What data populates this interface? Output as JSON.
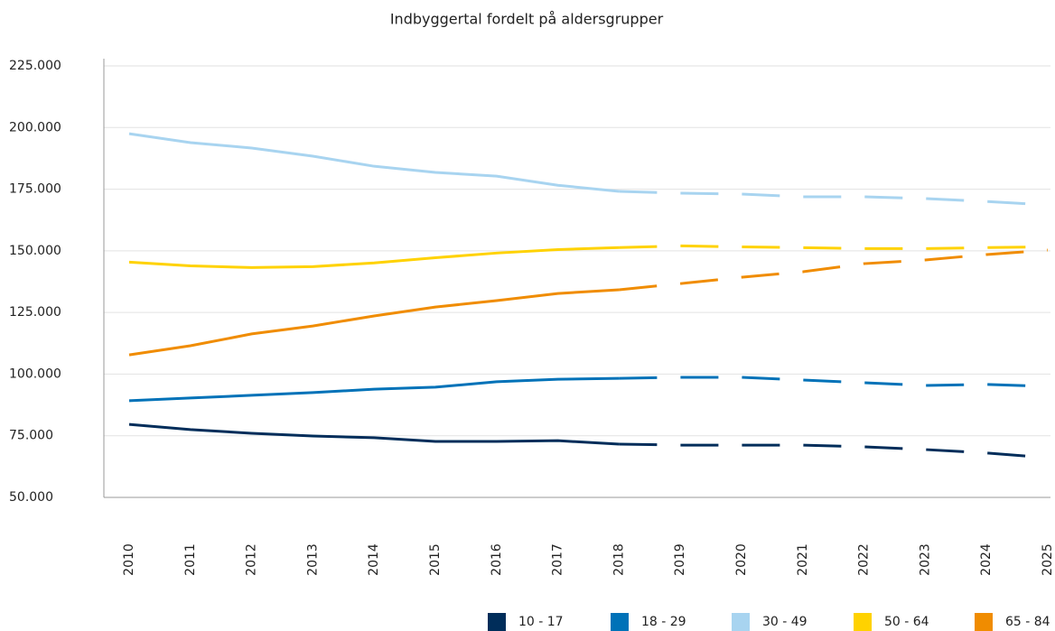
{
  "chart_data": {
    "type": "line",
    "title": "Indbyggertal fordelt på aldersgrupper",
    "categories": [
      "2010",
      "2011",
      "2012",
      "2013",
      "2014",
      "2015",
      "2016",
      "2017",
      "2018",
      "2019",
      "2020",
      "2021",
      "2022",
      "2023",
      "2024",
      "2025"
    ],
    "dashed_from": "2018",
    "series": [
      {
        "name": "10 - 17",
        "color": "#002d5a",
        "values": [
          79600,
          77500,
          76000,
          74900,
          74200,
          72700,
          72700,
          73000,
          71600,
          71200,
          71200,
          71200,
          70500,
          69400,
          68000,
          66100
        ]
      },
      {
        "name": "18 - 29",
        "color": "#0072b8",
        "values": [
          89200,
          90300,
          91400,
          92500,
          93900,
          94700,
          96900,
          97900,
          98300,
          98700,
          98700,
          97600,
          96500,
          95400,
          95800,
          95000
        ]
      },
      {
        "name": "30 - 49",
        "color": "#a8d4f0",
        "values": [
          197500,
          193900,
          191700,
          188400,
          184300,
          181800,
          180300,
          176600,
          174100,
          173400,
          173000,
          171900,
          171900,
          171200,
          170000,
          168600
        ]
      },
      {
        "name": "50 - 64",
        "color": "#ffd200",
        "values": [
          145400,
          143900,
          143200,
          143600,
          145100,
          147200,
          149100,
          150500,
          151300,
          152000,
          151600,
          151300,
          150900,
          150900,
          151300,
          151600
        ]
      },
      {
        "name": "65 - 84",
        "color": "#f08c00",
        "values": [
          107800,
          111500,
          116300,
          119500,
          123600,
          127200,
          129800,
          132700,
          134200,
          136700,
          139300,
          141500,
          144800,
          146300,
          148500,
          150300
        ]
      }
    ],
    "ylim": [
      50000,
      225000
    ],
    "yticks": [
      {
        "value": 50000,
        "label": "50.000"
      },
      {
        "value": 75000,
        "label": "75.000"
      },
      {
        "value": 100000,
        "label": "100.000"
      },
      {
        "value": 125000,
        "label": "125.000"
      },
      {
        "value": 150000,
        "label": "150.000"
      },
      {
        "value": 175000,
        "label": "175.000"
      },
      {
        "value": 200000,
        "label": "200.000"
      },
      {
        "value": 225000,
        "label": "225.000"
      }
    ],
    "grid": true,
    "legend": "bottom-right"
  }
}
